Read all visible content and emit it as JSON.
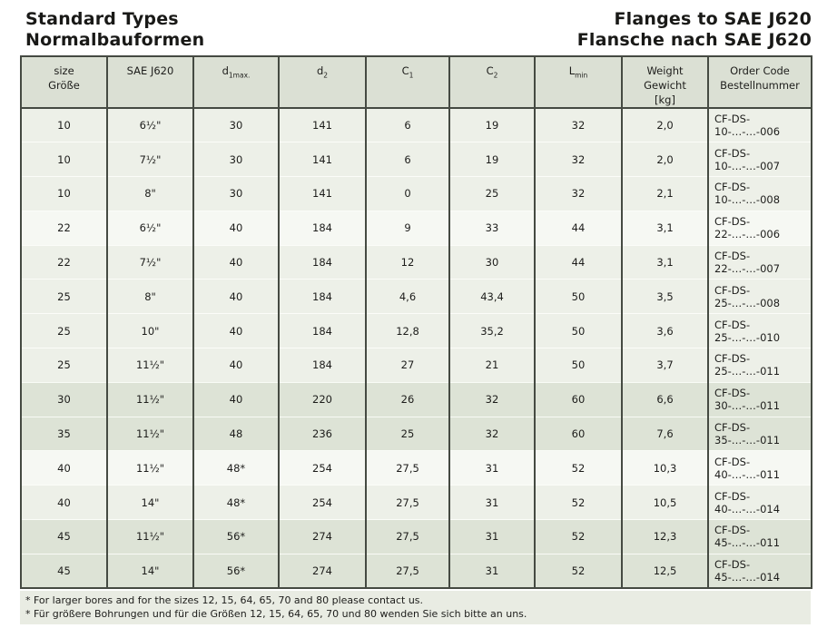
{
  "page": {
    "title_left_line1": "Standard Types",
    "title_left_line2": "Normalbauformen",
    "title_right_line1": "Flanges to SAE J620",
    "title_right_line2": "Flansche nach SAE J620"
  },
  "table": {
    "columns": [
      {
        "line1": "size",
        "line2": "Größe"
      },
      {
        "line1": "SAE J620"
      },
      {
        "base": "d",
        "sub": "1max."
      },
      {
        "base": "d",
        "sub": "2"
      },
      {
        "base": "C",
        "sub": "1"
      },
      {
        "base": "C",
        "sub": "2"
      },
      {
        "base": "L",
        "sub": "min"
      },
      {
        "line1": "Weight",
        "line2": "Gewicht",
        "line3": "[kg]"
      },
      {
        "line1": "Order Code",
        "line2": "Bestellnummer"
      }
    ],
    "rows": [
      {
        "shade": "light",
        "cells": [
          "10",
          "6½\"",
          "30",
          "141",
          "6",
          "19",
          "32",
          "2,0",
          "CF-DS-10-…-…-006"
        ]
      },
      {
        "shade": "light",
        "cells": [
          "10",
          "7½\"",
          "30",
          "141",
          "6",
          "19",
          "32",
          "2,0",
          "CF-DS-10-…-…-007"
        ]
      },
      {
        "shade": "light",
        "cells": [
          "10",
          "8\"",
          "30",
          "141",
          "0",
          "25",
          "32",
          "2,1",
          "CF-DS-10-…-…-008"
        ]
      },
      {
        "shade": "white",
        "cells": [
          "22",
          "6½\"",
          "40",
          "184",
          "9",
          "33",
          "44",
          "3,1",
          "CF-DS-22-…-…-006"
        ]
      },
      {
        "shade": "light",
        "cells": [
          "22",
          "7½\"",
          "40",
          "184",
          "12",
          "30",
          "44",
          "3,1",
          "CF-DS-22-…-…-007"
        ]
      },
      {
        "shade": "light",
        "cells": [
          "25",
          "8\"",
          "40",
          "184",
          "4,6",
          "43,4",
          "50",
          "3,5",
          "CF-DS-25-…-…-008"
        ]
      },
      {
        "shade": "light",
        "cells": [
          "25",
          "10\"",
          "40",
          "184",
          "12,8",
          "35,2",
          "50",
          "3,6",
          "CF-DS-25-…-…-010"
        ]
      },
      {
        "shade": "light",
        "cells": [
          "25",
          "11½\"",
          "40",
          "184",
          "27",
          "21",
          "50",
          "3,7",
          "CF-DS-25-…-…-011"
        ]
      },
      {
        "shade": "dark",
        "cells": [
          "30",
          "11½\"",
          "40",
          "220",
          "26",
          "32",
          "60",
          "6,6",
          "CF-DS-30-…-…-011"
        ]
      },
      {
        "shade": "dark",
        "cells": [
          "35",
          "11½\"",
          "48",
          "236",
          "25",
          "32",
          "60",
          "7,6",
          "CF-DS-35-…-…-011"
        ]
      },
      {
        "shade": "white",
        "cells": [
          "40",
          "11½\"",
          "48*",
          "254",
          "27,5",
          "31",
          "52",
          "10,3",
          "CF-DS-40-…-…-011"
        ]
      },
      {
        "shade": "light",
        "cells": [
          "40",
          "14\"",
          "48*",
          "254",
          "27,5",
          "31",
          "52",
          "10,5",
          "CF-DS-40-…-…-014"
        ]
      },
      {
        "shade": "dark",
        "cells": [
          "45",
          "11½\"",
          "56*",
          "274",
          "27,5",
          "31",
          "52",
          "12,3",
          "CF-DS-45-…-…-011"
        ]
      },
      {
        "shade": "dark",
        "cells": [
          "45",
          "14\"",
          "56*",
          "274",
          "27,5",
          "31",
          "52",
          "12,5",
          "CF-DS-45-…-…-014"
        ]
      }
    ]
  },
  "notes": {
    "line1": "* For larger bores and for the sizes 12, 15, 64, 65, 70 and 80 please contact us.",
    "line2": "* Für größere Bohrungen und für die Größen 12, 15, 64, 65, 70 und 80 wenden Sie sich bitte an uns."
  },
  "colors": {
    "border": "#454a42",
    "header_bg": "#dbe0d4",
    "row_light": "#edf0e8",
    "row_white": "#f6f8f3",
    "row_dark": "#dde3d6",
    "notes_bg": "#e9ece3",
    "text": "#1d1d1b"
  }
}
